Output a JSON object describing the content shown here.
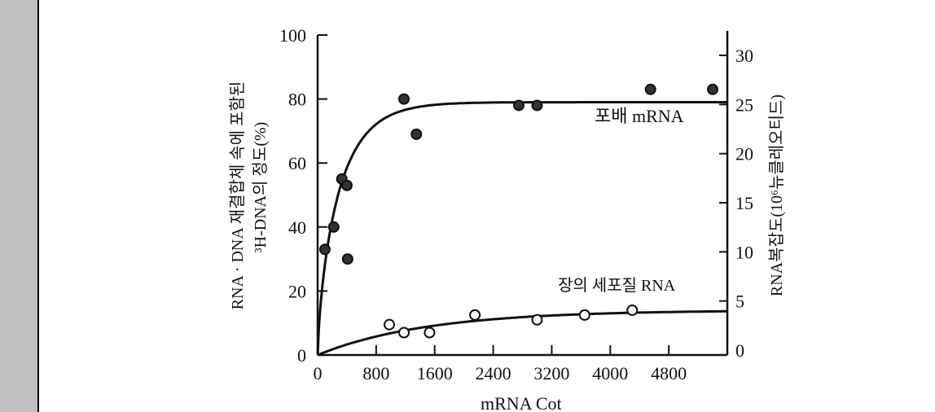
{
  "chart_data": {
    "type": "scatter",
    "title": "",
    "xlabel": "mRNA Cot",
    "ylabel_line1": "RNA · DNA 재결합체 속에 포함된",
    "ylabel_line2": "³H-DNA의 정도(%)",
    "y2label": "RNA복잡도(10⁶뉴클레오티드)",
    "xlim": [
      0,
      5600
    ],
    "ylim": [
      0,
      100
    ],
    "y2lim": [
      0,
      30
    ],
    "xticks": [
      "0",
      "800",
      "1600",
      "2400",
      "3200",
      "4000",
      "4800"
    ],
    "xtick_values": [
      0,
      800,
      1600,
      2400,
      3200,
      4000,
      4800
    ],
    "yticks": [
      "0",
      "20",
      "40",
      "60",
      "80",
      "100"
    ],
    "ytick_values": [
      0,
      20,
      40,
      60,
      80,
      100
    ],
    "y2ticks": [
      "0",
      "5",
      "10",
      "15",
      "20",
      "25",
      "30"
    ],
    "y2tick_values": [
      0,
      5,
      10,
      15,
      20,
      25,
      30
    ],
    "grid": false,
    "series": [
      {
        "name": "포배 mRNA",
        "marker": "filled-circle",
        "x": [
          100,
          220,
          330,
          400,
          410,
          1180,
          1350,
          2750,
          3000,
          4550,
          5400
        ],
        "y": [
          33,
          40,
          55,
          53,
          30,
          80,
          69,
          78,
          78,
          83,
          83
        ],
        "fit_plateau": 79
      },
      {
        "name": "장의 세포질 RNA",
        "marker": "open-circle",
        "x": [
          980,
          1180,
          1530,
          2150,
          3000,
          3650,
          4300
        ],
        "y": [
          9.5,
          7,
          7,
          12.5,
          11,
          12.5,
          14
        ],
        "fit_plateau": 14
      }
    ]
  }
}
